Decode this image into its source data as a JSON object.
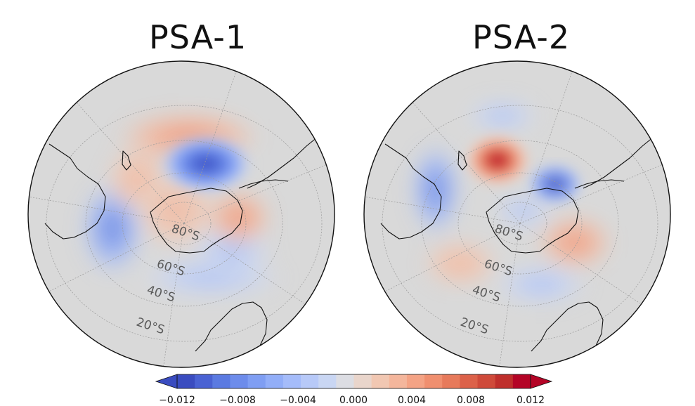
{
  "panels": [
    {
      "id": "left",
      "title": "PSA-1",
      "lat_labels": [
        "80°S",
        "60°S",
        "40°S",
        "20°S"
      ],
      "anomalies": [
        {
          "sign": "neg",
          "strength": 1.0
        },
        {
          "sign": "pos",
          "strength": 0.45
        },
        {
          "sign": "pos",
          "strength": 0.35
        },
        {
          "sign": "pos",
          "strength": 0.55
        },
        {
          "sign": "neg",
          "strength": 0.3
        },
        {
          "sign": "neg",
          "strength": 0.2
        }
      ]
    },
    {
      "id": "right",
      "title": "PSA-2",
      "lat_labels": [
        "80°S",
        "60°S",
        "40°S",
        "20°S"
      ],
      "anomalies": [
        {
          "sign": "pos",
          "strength": 1.0
        },
        {
          "sign": "neg",
          "strength": 0.7
        },
        {
          "sign": "pos",
          "strength": 0.6
        },
        {
          "sign": "pos",
          "strength": 0.4
        },
        {
          "sign": "neg",
          "strength": 0.35
        },
        {
          "sign": "neg",
          "strength": 0.3
        },
        {
          "sign": "neg",
          "strength": 0.2
        }
      ]
    }
  ],
  "colorbar": {
    "min": -0.012,
    "max": 0.012,
    "ticks": [
      "−0.012",
      "−0.008",
      "−0.004",
      "0.000",
      "0.004",
      "0.008",
      "0.012"
    ],
    "colors": [
      "#3a4cc0",
      "#4a62d3",
      "#5b7ae1",
      "#6d8ceb",
      "#7f9ef3",
      "#92aef8",
      "#a5bcfa",
      "#b7c9f8",
      "#c9d6f3",
      "#dcdde3",
      "#e9d5cb",
      "#f1c7b2",
      "#f4b69c",
      "#f4a385",
      "#f08f6f",
      "#e77a5b",
      "#dc6149",
      "#cf4a3a",
      "#bf2f2c",
      "#b40426"
    ]
  },
  "colors": {
    "land_bg": "#d9d9d9",
    "coast": "#111111",
    "grid": "#9a9a9a"
  }
}
